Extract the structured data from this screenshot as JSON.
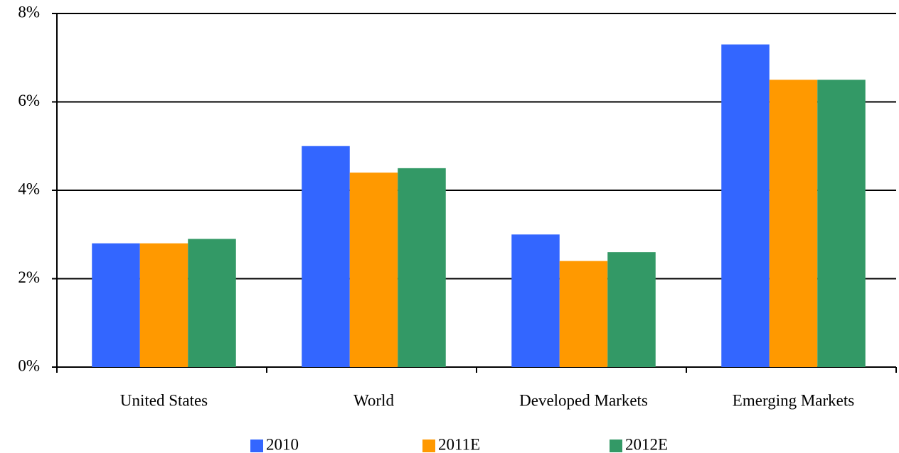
{
  "chart_data": {
    "type": "bar",
    "categories": [
      "United States",
      "World",
      "Developed Markets",
      "Emerging Markets"
    ],
    "series": [
      {
        "name": "2010",
        "color": "#3366ff",
        "values": [
          2.8,
          5.0,
          3.0,
          7.3
        ]
      },
      {
        "name": "2011E",
        "color": "#ff9900",
        "values": [
          2.8,
          4.4,
          2.4,
          6.5
        ]
      },
      {
        "name": "2012E",
        "color": "#339966",
        "values": [
          2.9,
          4.5,
          2.6,
          6.5
        ]
      }
    ],
    "ylim": [
      0,
      8
    ],
    "yticks": [
      {
        "value": 0,
        "label": "0%"
      },
      {
        "value": 2,
        "label": "2%"
      },
      {
        "value": 4,
        "label": "4%"
      },
      {
        "value": 6,
        "label": "6%"
      },
      {
        "value": 8,
        "label": "8%"
      }
    ],
    "grid": true,
    "legend": "bottom"
  }
}
